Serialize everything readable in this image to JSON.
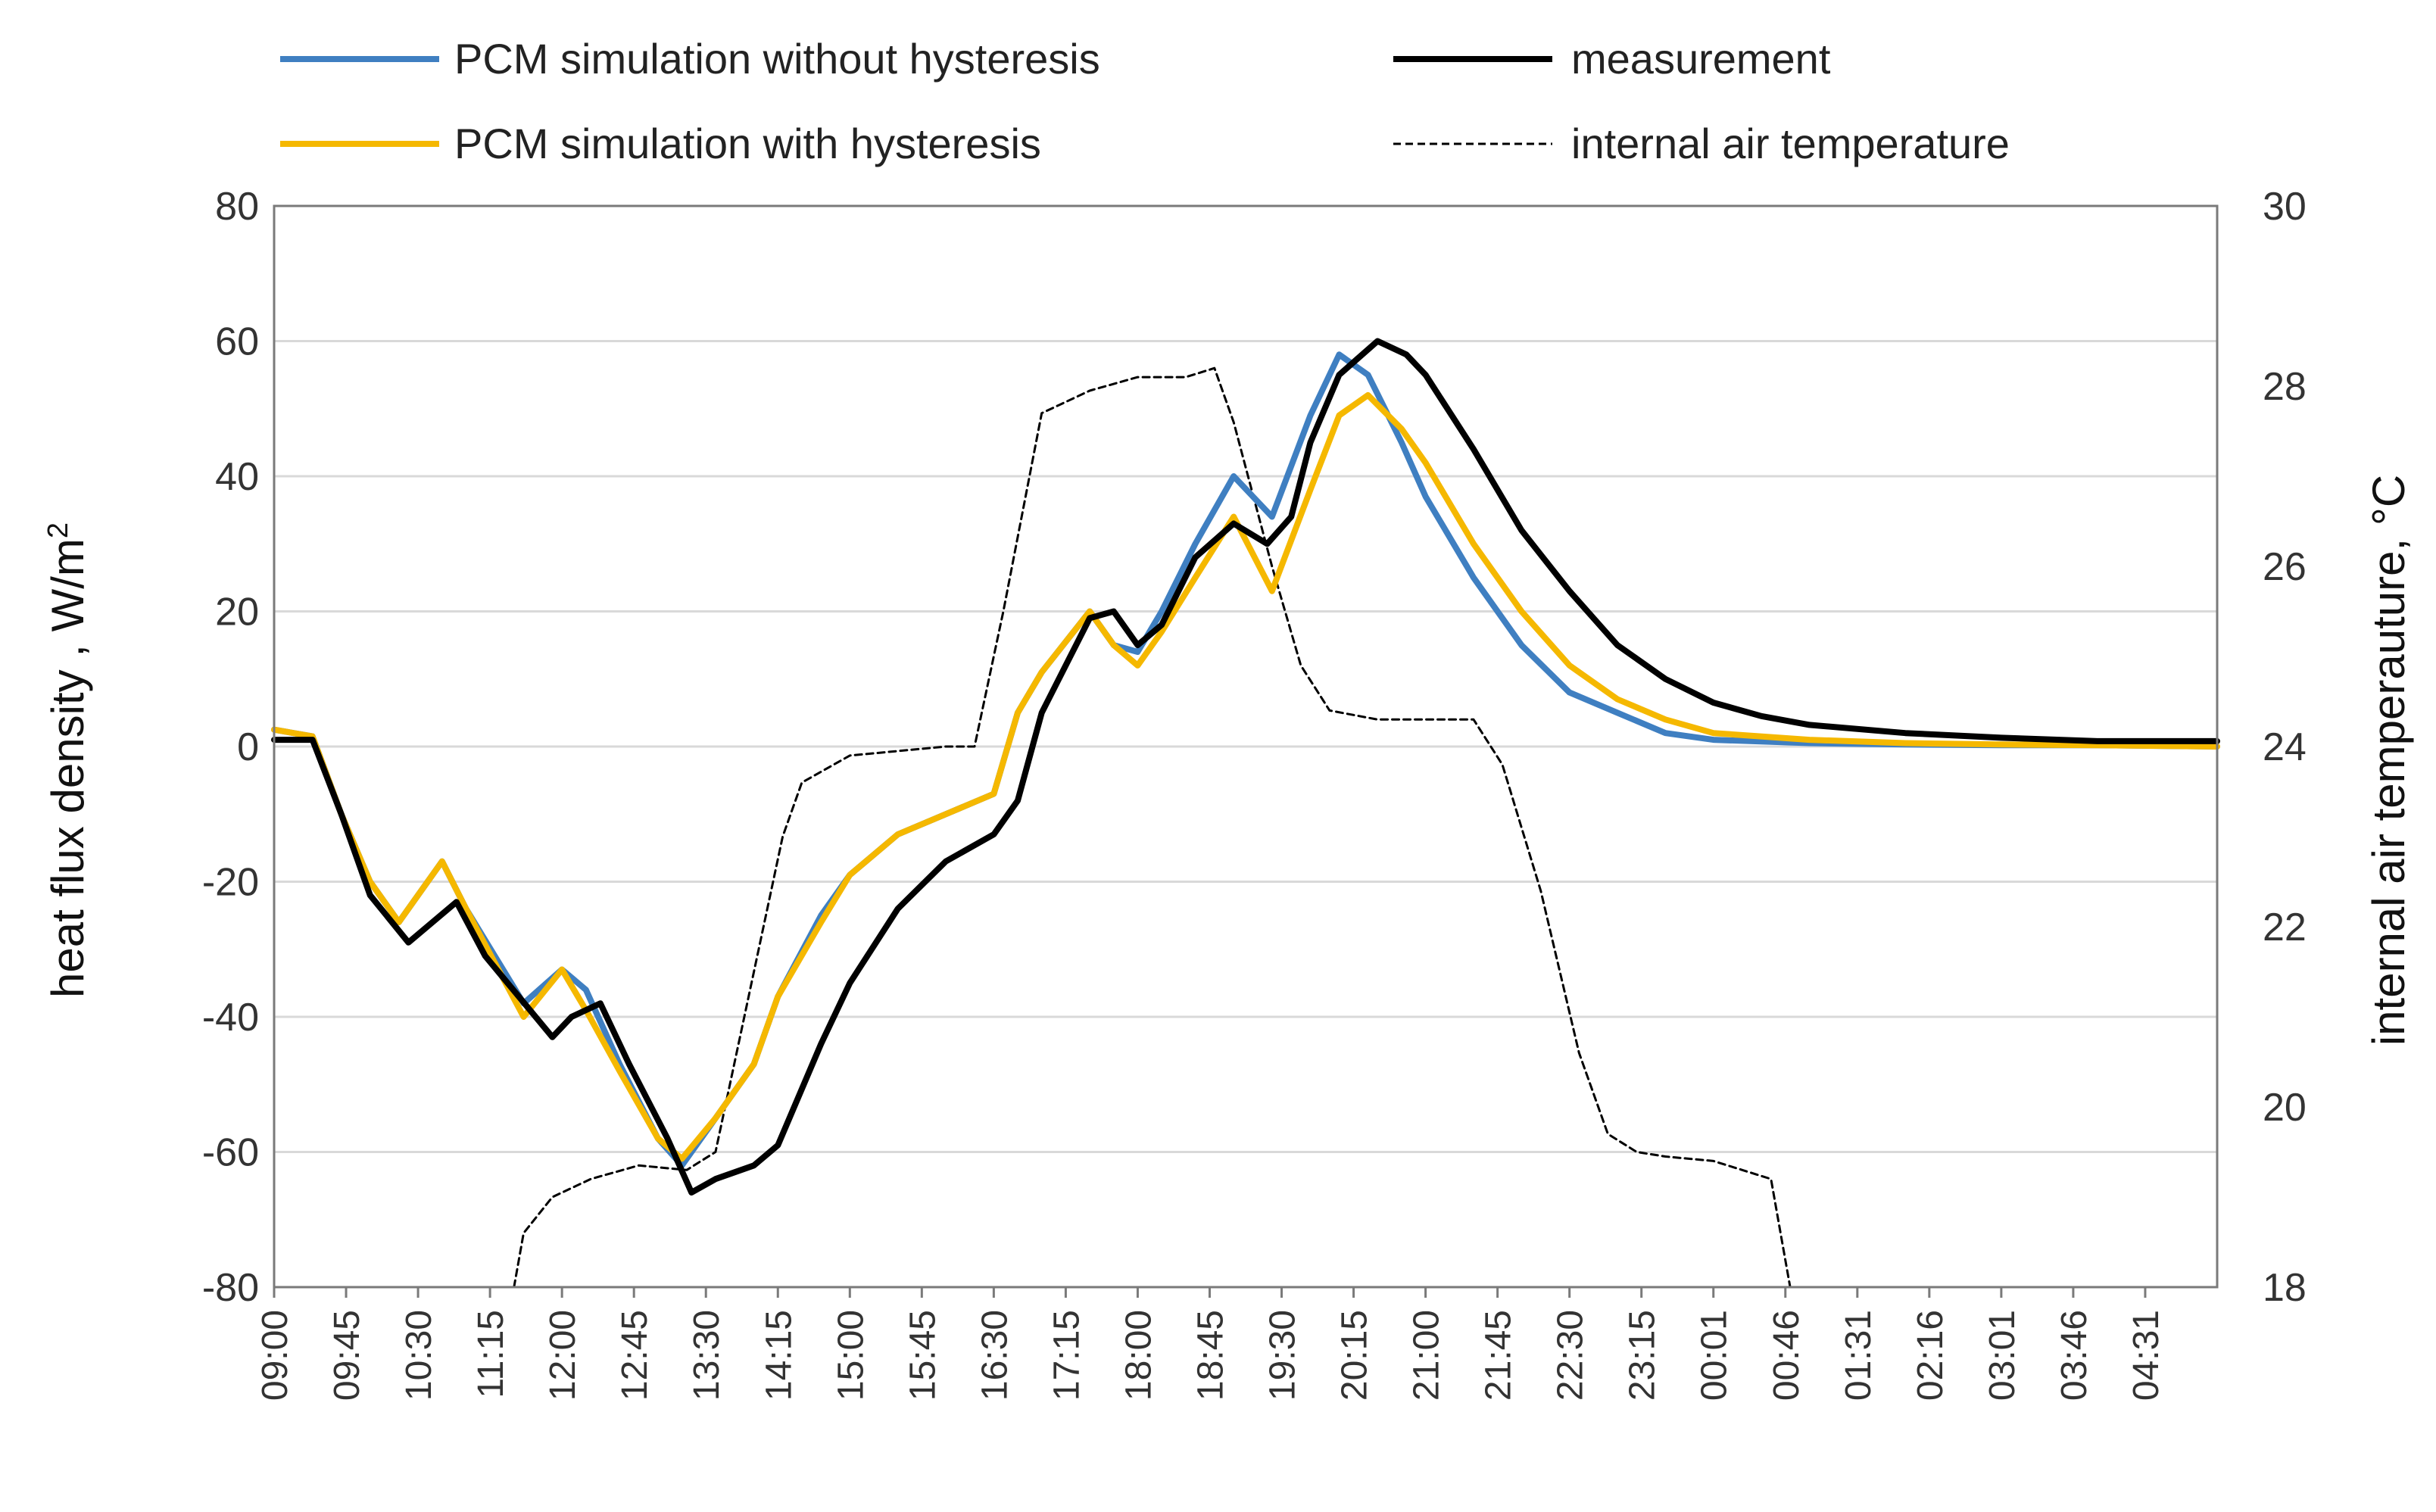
{
  "chart_data": {
    "type": "line",
    "title": "",
    "ylabel": "heat flux density , W/m",
    "ylabel_superscript": "2",
    "y2label": "internal air temperauture, °C",
    "ylim": [
      -80,
      80
    ],
    "y2lim": [
      18,
      30
    ],
    "yticks": [
      "80",
      "60",
      "40",
      "20",
      "0",
      "-20",
      "-40",
      "-60",
      "-80"
    ],
    "y2ticks": [
      "30",
      "28",
      "26",
      "24",
      "22",
      "20",
      "18"
    ],
    "xticks": [
      "09:00",
      "09:45",
      "10:30",
      "11:15",
      "12:00",
      "12:45",
      "13:30",
      "14:15",
      "15:00",
      "15:45",
      "16:30",
      "17:15",
      "18:00",
      "18:45",
      "19:30",
      "20:15",
      "21:00",
      "21:45",
      "22:30",
      "23:15",
      "00:01",
      "00:46",
      "01:31",
      "02:16",
      "03:01",
      "03:46",
      "04:31"
    ],
    "x_hours_range": [
      0,
      20.25
    ],
    "series": [
      {
        "name": "PCM simulation without hysteresis",
        "axis": "left",
        "color": "#3f7fc1",
        "style": "solid",
        "points": [
          [
            0,
            2.5
          ],
          [
            0.4,
            1.5
          ],
          [
            0.7,
            -10
          ],
          [
            1.0,
            -20
          ],
          [
            1.3,
            -26
          ],
          [
            1.75,
            -17
          ],
          [
            2.0,
            -24
          ],
          [
            2.6,
            -38
          ],
          [
            3.0,
            -33
          ],
          [
            3.25,
            -36
          ],
          [
            3.6,
            -47
          ],
          [
            4.0,
            -58
          ],
          [
            4.25,
            -62
          ],
          [
            4.6,
            -55
          ],
          [
            5.0,
            -47
          ],
          [
            5.25,
            -37
          ],
          [
            5.7,
            -25
          ],
          [
            6.0,
            -19
          ],
          [
            6.5,
            -13
          ],
          [
            7.0,
            -10
          ],
          [
            7.5,
            -7
          ],
          [
            7.75,
            5
          ],
          [
            8.0,
            11
          ],
          [
            8.5,
            20
          ],
          [
            8.75,
            15
          ],
          [
            9.0,
            14
          ],
          [
            9.25,
            20
          ],
          [
            9.6,
            30
          ],
          [
            10.0,
            40
          ],
          [
            10.4,
            34
          ],
          [
            10.8,
            49
          ],
          [
            11.1,
            58
          ],
          [
            11.4,
            55
          ],
          [
            11.75,
            45
          ],
          [
            12.0,
            37
          ],
          [
            12.5,
            25
          ],
          [
            13.0,
            15
          ],
          [
            13.5,
            8
          ],
          [
            14.0,
            5
          ],
          [
            14.5,
            2
          ],
          [
            15.0,
            1
          ],
          [
            16.0,
            0.5
          ],
          [
            17.0,
            0.3
          ],
          [
            18.0,
            0.2
          ],
          [
            19.0,
            0.2
          ],
          [
            20.25,
            0
          ]
        ]
      },
      {
        "name": "PCM simulation with hysteresis",
        "axis": "left",
        "color": "#f5b800",
        "style": "solid",
        "points": [
          [
            0,
            2.5
          ],
          [
            0.4,
            1.5
          ],
          [
            0.7,
            -10
          ],
          [
            1.0,
            -20
          ],
          [
            1.3,
            -26
          ],
          [
            1.75,
            -17
          ],
          [
            2.0,
            -24
          ],
          [
            2.6,
            -40
          ],
          [
            3.0,
            -33
          ],
          [
            3.25,
            -39
          ],
          [
            3.6,
            -48
          ],
          [
            4.0,
            -58
          ],
          [
            4.25,
            -61
          ],
          [
            4.6,
            -55
          ],
          [
            5.0,
            -47
          ],
          [
            5.25,
            -37
          ],
          [
            5.7,
            -26
          ],
          [
            6.0,
            -19
          ],
          [
            6.5,
            -13
          ],
          [
            7.0,
            -10
          ],
          [
            7.5,
            -7
          ],
          [
            7.75,
            5
          ],
          [
            8.0,
            11
          ],
          [
            8.5,
            20
          ],
          [
            8.75,
            15
          ],
          [
            9.0,
            12
          ],
          [
            9.25,
            17
          ],
          [
            9.6,
            25
          ],
          [
            10.0,
            34
          ],
          [
            10.4,
            23
          ],
          [
            10.8,
            38
          ],
          [
            11.1,
            49
          ],
          [
            11.4,
            52
          ],
          [
            11.75,
            47
          ],
          [
            12.0,
            42
          ],
          [
            12.5,
            30
          ],
          [
            13.0,
            20
          ],
          [
            13.5,
            12
          ],
          [
            14.0,
            7
          ],
          [
            14.5,
            4
          ],
          [
            15.0,
            2
          ],
          [
            16.0,
            1
          ],
          [
            17.0,
            0.5
          ],
          [
            18.0,
            0.3
          ],
          [
            19.0,
            0.2
          ],
          [
            20.25,
            0
          ]
        ]
      },
      {
        "name": "measurement",
        "axis": "left",
        "color": "#000000",
        "style": "solid",
        "points": [
          [
            0,
            1
          ],
          [
            0.4,
            1
          ],
          [
            0.7,
            -10
          ],
          [
            1.0,
            -22
          ],
          [
            1.4,
            -29
          ],
          [
            1.9,
            -23
          ],
          [
            2.2,
            -31
          ],
          [
            2.9,
            -43
          ],
          [
            3.1,
            -40
          ],
          [
            3.4,
            -38
          ],
          [
            3.7,
            -47
          ],
          [
            4.1,
            -58
          ],
          [
            4.35,
            -66
          ],
          [
            4.6,
            -64
          ],
          [
            5.0,
            -62
          ],
          [
            5.25,
            -59
          ],
          [
            5.7,
            -44
          ],
          [
            6.0,
            -35
          ],
          [
            6.5,
            -24
          ],
          [
            7.0,
            -17
          ],
          [
            7.5,
            -13
          ],
          [
            7.75,
            -8
          ],
          [
            8.0,
            5
          ],
          [
            8.5,
            19
          ],
          [
            8.75,
            20
          ],
          [
            9.0,
            15
          ],
          [
            9.25,
            18
          ],
          [
            9.6,
            28
          ],
          [
            10.0,
            33
          ],
          [
            10.35,
            30
          ],
          [
            10.6,
            34
          ],
          [
            10.8,
            45
          ],
          [
            11.1,
            55
          ],
          [
            11.5,
            60
          ],
          [
            11.8,
            58
          ],
          [
            12.0,
            55
          ],
          [
            12.5,
            44
          ],
          [
            13.0,
            32
          ],
          [
            13.5,
            23
          ],
          [
            14.0,
            15
          ],
          [
            14.5,
            10
          ],
          [
            15.0,
            6.5
          ],
          [
            15.5,
            4.5
          ],
          [
            16.0,
            3.2
          ],
          [
            17.0,
            2
          ],
          [
            18.0,
            1.3
          ],
          [
            19.0,
            0.8
          ],
          [
            20.25,
            0.8
          ]
        ]
      },
      {
        "name": "internal air temperature",
        "axis": "right",
        "color": "#000000",
        "style": "dashed",
        "points": [
          [
            2.5,
            18
          ],
          [
            2.6,
            18.6
          ],
          [
            2.9,
            19
          ],
          [
            3.3,
            19.2
          ],
          [
            3.8,
            19.35
          ],
          [
            4.3,
            19.3
          ],
          [
            4.6,
            19.5
          ],
          [
            5.0,
            21.5
          ],
          [
            5.3,
            23.0
          ],
          [
            5.5,
            23.6
          ],
          [
            6.0,
            23.9
          ],
          [
            7.0,
            24.0
          ],
          [
            7.3,
            24.0
          ],
          [
            7.6,
            25.5
          ],
          [
            8.0,
            27.7
          ],
          [
            8.5,
            27.95
          ],
          [
            9.0,
            28.1
          ],
          [
            9.5,
            28.1
          ],
          [
            9.8,
            28.2
          ],
          [
            10.0,
            27.6
          ],
          [
            10.4,
            26.0
          ],
          [
            10.7,
            24.9
          ],
          [
            11.0,
            24.4
          ],
          [
            11.5,
            24.3
          ],
          [
            12.0,
            24.3
          ],
          [
            12.5,
            24.3
          ],
          [
            12.8,
            23.8
          ],
          [
            13.2,
            22.4
          ],
          [
            13.6,
            20.6
          ],
          [
            13.9,
            19.7
          ],
          [
            14.2,
            19.5
          ],
          [
            14.5,
            19.45
          ],
          [
            15.0,
            19.4
          ],
          [
            15.3,
            19.3
          ],
          [
            15.6,
            19.2
          ],
          [
            15.7,
            18.6
          ],
          [
            15.8,
            18.0
          ]
        ]
      }
    ],
    "legend": {
      "placement": "top",
      "entries": [
        "PCM simulation without hysteresis",
        "measurement",
        "PCM simulation with hysteresis",
        "internal air temperature"
      ]
    }
  }
}
